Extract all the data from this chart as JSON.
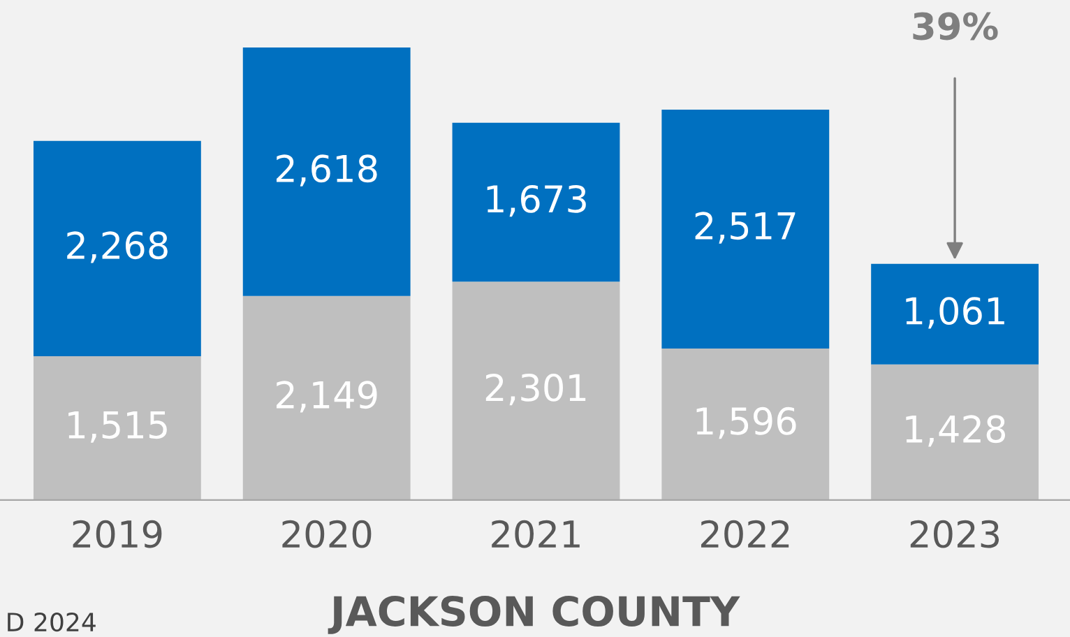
{
  "chart_data": {
    "type": "bar",
    "stacked": true,
    "title": "JACKSON COUNTY",
    "categories": [
      "2019",
      "2020",
      "2021",
      "2022",
      "2023"
    ],
    "series": [
      {
        "color": "#bfbfbf",
        "values": [
          1515,
          2149,
          2301,
          1596,
          1428
        ],
        "value_labels": [
          "1,515",
          "2,149",
          "2,301",
          "1,596",
          "1,428"
        ]
      },
      {
        "color": "#0070c0",
        "values": [
          2268,
          2618,
          1673,
          2517,
          1061
        ],
        "value_labels": [
          "2,268",
          "2,618",
          "1,673",
          "2,517",
          "1,061"
        ]
      }
    ],
    "grid": false,
    "legend": false,
    "tick_labels": "x",
    "annotations": [
      {
        "text": "39%",
        "x": "2023",
        "y": 2489
      },
      "D 2024"
    ]
  }
}
